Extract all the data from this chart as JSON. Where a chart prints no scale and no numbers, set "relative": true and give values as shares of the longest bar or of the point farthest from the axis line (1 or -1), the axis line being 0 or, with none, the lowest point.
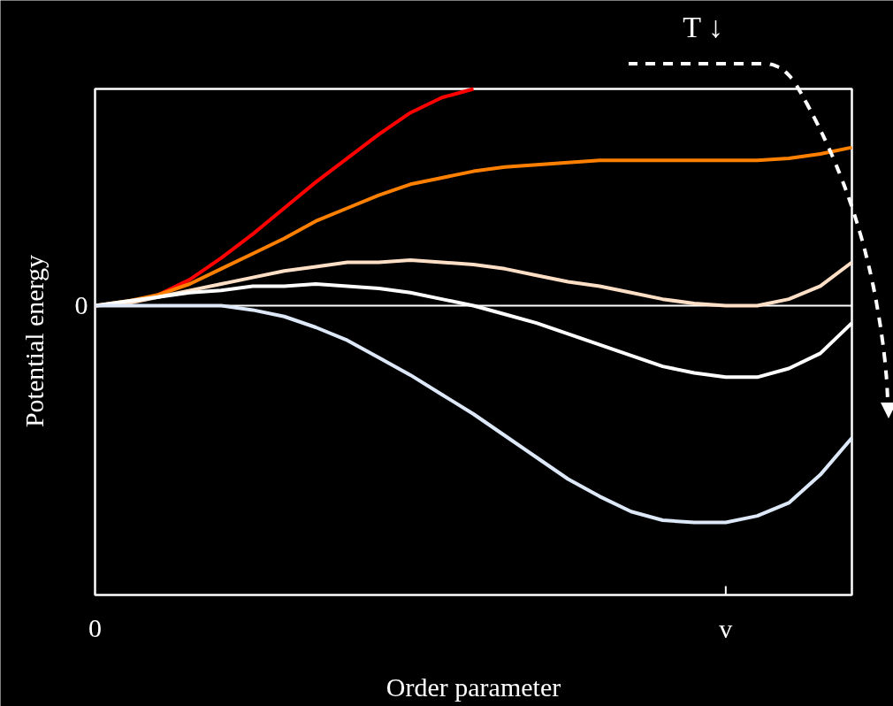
{
  "chart_data": {
    "type": "line",
    "relative": true,
    "xlabel": "Order parameter",
    "ylabel": "Potential energy",
    "line_style": "solid",
    "categories": [
      "0",
      null,
      null,
      null,
      null,
      null,
      null,
      null,
      null,
      null,
      null,
      null,
      null,
      null,
      null,
      null,
      null,
      null,
      null,
      null,
      "v",
      null,
      null,
      null,
      null
    ],
    "ref_lines": [
      {
        "axis": "y",
        "value": 0,
        "label": "0",
        "color": "#ffffff"
      }
    ],
    "annotations": [
      "T ↓"
    ],
    "series": [
      {
        "color": "#ff0000",
        "values": [
          0,
          0.01,
          0.05,
          0.12,
          0.22,
          0.33,
          0.45,
          0.57,
          0.68,
          0.79,
          0.89,
          0.96,
          1.0,
          null,
          null,
          null,
          null,
          null,
          null,
          null,
          null,
          null,
          null,
          null,
          null
        ]
      },
      {
        "color": "#ff8000",
        "values": [
          0,
          0.02,
          0.05,
          0.1,
          0.17,
          0.24,
          0.31,
          0.39,
          0.45,
          0.51,
          0.56,
          0.59,
          0.62,
          0.64,
          0.65,
          0.66,
          0.67,
          0.67,
          0.67,
          0.67,
          0.67,
          0.67,
          0.68,
          0.7,
          0.73
        ]
      },
      {
        "color": "#ffdfc6",
        "values": [
          0,
          0.01,
          0.04,
          0.07,
          0.1,
          0.13,
          0.16,
          0.18,
          0.2,
          0.2,
          0.21,
          0.2,
          0.19,
          0.17,
          0.14,
          0.11,
          0.09,
          0.06,
          0.03,
          0.01,
          0,
          0,
          0.03,
          0.09,
          0.2
        ]
      },
      {
        "color": "#ffffff",
        "values": [
          0,
          0.02,
          0.04,
          0.06,
          0.07,
          0.09,
          0.09,
          0.1,
          0.09,
          0.08,
          0.06,
          0.03,
          0,
          -0.04,
          -0.08,
          -0.13,
          -0.18,
          -0.23,
          -0.28,
          -0.31,
          -0.33,
          -0.33,
          -0.29,
          -0.22,
          -0.08
        ]
      },
      {
        "color": "#dde8f8",
        "values": [
          0,
          0,
          0,
          0,
          0,
          -0.02,
          -0.05,
          -0.1,
          -0.16,
          -0.24,
          -0.32,
          -0.41,
          -0.5,
          -0.6,
          -0.7,
          -0.8,
          -0.88,
          -0.95,
          -0.99,
          -1.0,
          -1.0,
          -0.97,
          -0.91,
          -0.78,
          -0.61
        ]
      }
    ]
  }
}
